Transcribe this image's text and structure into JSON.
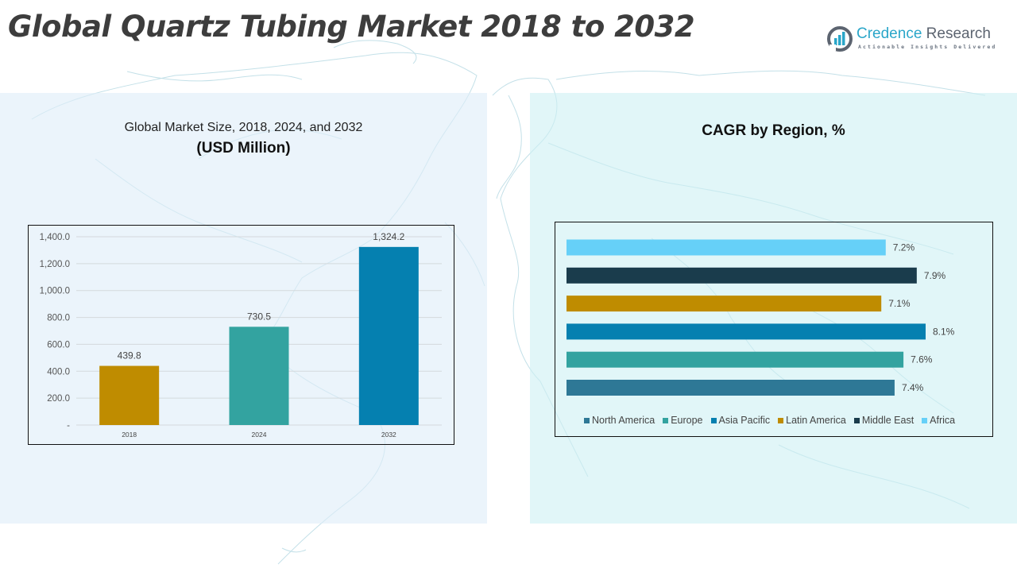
{
  "header": {
    "title": "Global Quartz Tubing Market 2018 to 2032"
  },
  "logo": {
    "name_part1": "Credence",
    "name_part2": " Research",
    "tagline": "Actionable Insights Delivered"
  },
  "left_panel": {
    "title": "Global Market Size, 2018, 2024, and 2032",
    "subtitle": "(USD Million)"
  },
  "right_panel": {
    "title": "CAGR by Region, %"
  },
  "chart_data": [
    {
      "type": "bar",
      "title": "Global Market Size, 2018, 2024, and 2032",
      "subtitle": "(USD Million)",
      "xlabel": "",
      "ylabel": "",
      "categories": [
        "2018",
        "2024",
        "2032"
      ],
      "values": [
        439.8,
        730.5,
        1324.2
      ],
      "value_labels": [
        "439.8",
        "730.5",
        "1,324.2"
      ],
      "colors": [
        "#bf8c00",
        "#33a3a0",
        "#0580b0"
      ],
      "ylim": [
        0,
        1400
      ],
      "yticks": [
        0,
        200,
        400,
        600,
        800,
        1000,
        1200,
        1400
      ],
      "ytick_labels": [
        "-",
        "200.0",
        "400.0",
        "600.0",
        "800.0",
        "1,000.0",
        "1,200.0",
        "1,400.0"
      ],
      "grid": true,
      "legend": "none"
    },
    {
      "type": "bar",
      "orientation": "horizontal",
      "title": "CAGR by Region, %",
      "categories": [
        "North America",
        "Europe",
        "Asia Pacific",
        "Latin America",
        "Middle East",
        "Africa"
      ],
      "values": [
        7.4,
        7.6,
        8.1,
        7.1,
        7.9,
        7.2
      ],
      "value_labels": [
        "7.4%",
        "7.6%",
        "8.1%",
        "7.1%",
        "7.9%",
        "7.2%"
      ],
      "colors": [
        "#2e7896",
        "#33a3a0",
        "#0580b0",
        "#bf8c00",
        "#1a3c4c",
        "#66d0f8"
      ],
      "xlim": [
        0,
        8.1
      ],
      "grid": false,
      "legend": "bottom"
    }
  ]
}
